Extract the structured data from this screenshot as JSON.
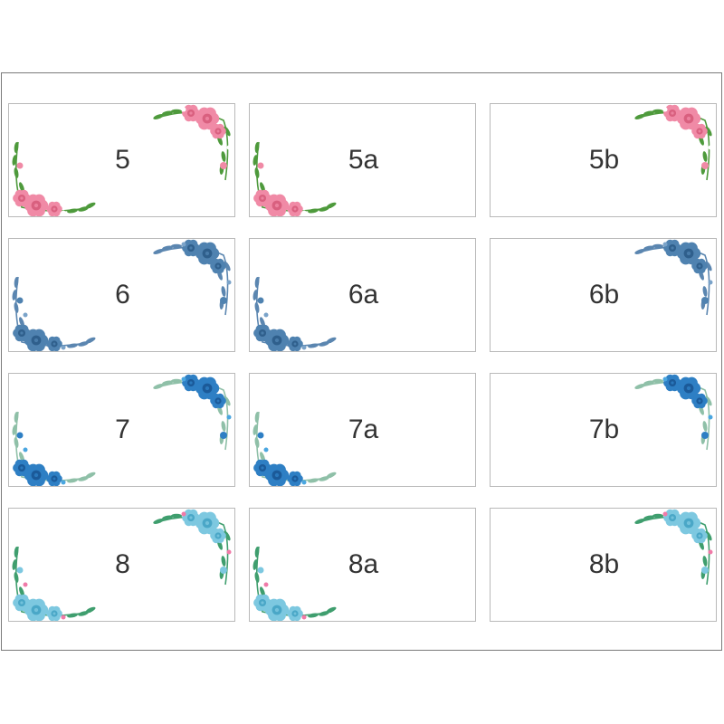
{
  "cards": [
    {
      "label": "5",
      "theme": "pink",
      "corners": [
        "tr",
        "bl"
      ]
    },
    {
      "label": "5a",
      "theme": "pink",
      "corners": [
        "bl"
      ]
    },
    {
      "label": "5b",
      "theme": "pink",
      "corners": [
        "tr"
      ]
    },
    {
      "label": "6",
      "theme": "navy",
      "corners": [
        "tr",
        "bl"
      ]
    },
    {
      "label": "6a",
      "theme": "navy",
      "corners": [
        "bl"
      ]
    },
    {
      "label": "6b",
      "theme": "navy",
      "corners": [
        "tr"
      ]
    },
    {
      "label": "7",
      "theme": "blue",
      "corners": [
        "tr",
        "bl"
      ]
    },
    {
      "label": "7a",
      "theme": "blue",
      "corners": [
        "bl"
      ]
    },
    {
      "label": "7b",
      "theme": "blue",
      "corners": [
        "tr"
      ]
    },
    {
      "label": "8",
      "theme": "aqua",
      "corners": [
        "tr",
        "bl"
      ]
    },
    {
      "label": "8a",
      "theme": "aqua",
      "corners": [
        "bl"
      ]
    },
    {
      "label": "8b",
      "theme": "aqua",
      "corners": [
        "tr"
      ]
    }
  ],
  "themes": {
    "pink": {
      "flower": "#f08aa6",
      "flower_dark": "#d9607f",
      "leaf": "#4e9a3c",
      "accent": "#ffffff"
    },
    "navy": {
      "flower": "#4f82b0",
      "flower_dark": "#2f5f8c",
      "leaf": "#5b86b0",
      "accent": "#7aa3c9"
    },
    "blue": {
      "flower": "#2e7fc4",
      "flower_dark": "#1b5a99",
      "leaf": "#8fc0a8",
      "accent": "#4aa6e0"
    },
    "aqua": {
      "flower": "#7dc8e0",
      "flower_dark": "#4aa7c7",
      "leaf": "#3f9e6e",
      "accent": "#f07aa8"
    }
  },
  "icons": {
    "corner_decoration": "floral-corner-icon"
  }
}
